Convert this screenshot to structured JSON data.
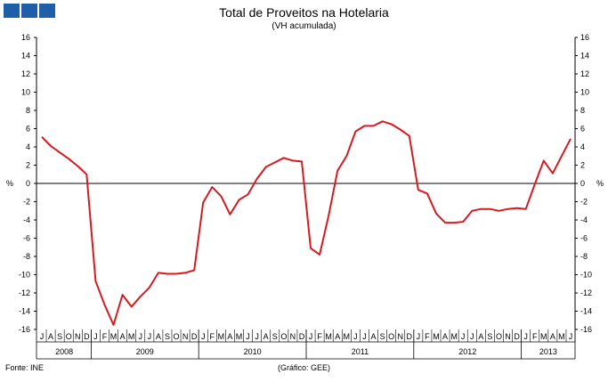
{
  "logo_color": "#1f5fa8",
  "chart_data": {
    "type": "line",
    "title": "Total de Proveitos na Hotelaria",
    "subtitle": "(VH acumulada)",
    "ylabel": "%",
    "ylim": [
      -16,
      16
    ],
    "yticks": [
      16,
      14,
      12,
      10,
      8,
      6,
      4,
      2,
      0,
      -2,
      -4,
      -6,
      -8,
      -10,
      -12,
      -14,
      -16
    ],
    "month_labels": [
      "J",
      "A",
      "S",
      "O",
      "N",
      "D",
      "J",
      "F",
      "M",
      "A",
      "M",
      "J",
      "J",
      "A",
      "S",
      "O",
      "N",
      "D",
      "J",
      "F",
      "M",
      "A",
      "M",
      "J",
      "J",
      "A",
      "S",
      "O",
      "N",
      "D",
      "J",
      "F",
      "M",
      "A",
      "M",
      "J",
      "J",
      "A",
      "S",
      "O",
      "N",
      "D",
      "J",
      "F",
      "M",
      "A",
      "M",
      "J",
      "J",
      "A",
      "S",
      "O",
      "N",
      "D",
      "J",
      "F",
      "M",
      "A",
      "M",
      "J"
    ],
    "years": [
      {
        "label": "2008",
        "months": 6
      },
      {
        "label": "2009",
        "months": 12
      },
      {
        "label": "2010",
        "months": 12
      },
      {
        "label": "2011",
        "months": 12
      },
      {
        "label": "2012",
        "months": 12
      },
      {
        "label": "2013",
        "months": 6
      }
    ],
    "series": [
      {
        "color": "#d71920",
        "values": [
          5.1,
          4.1,
          3.4,
          2.7,
          1.9,
          1.0,
          -10.7,
          -13.3,
          -15.5,
          -12.2,
          -13.5,
          -12.4,
          -11.4,
          -9.8,
          -9.9,
          -9.9,
          -9.8,
          -9.5,
          -2.1,
          -0.4,
          -1.4,
          -3.4,
          -1.8,
          -1.2,
          0.5,
          1.8,
          2.3,
          2.8,
          2.5,
          2.4,
          -7.1,
          -7.8,
          -3.5,
          1.4,
          3.0,
          5.7,
          6.3,
          6.3,
          6.8,
          6.5,
          5.9,
          5.2,
          -0.7,
          -1.1,
          -3.3,
          -4.3,
          -4.3,
          -4.2,
          -3.0,
          -2.8,
          -2.8,
          -3.0,
          -2.8,
          -2.7,
          -2.8,
          -0.1,
          2.5,
          1.1,
          3.0,
          4.9
        ]
      }
    ],
    "grid": false,
    "legend": "none"
  },
  "footer": {
    "source": "Fonte: INE",
    "credit": "(Gráfico: GEE)"
  }
}
